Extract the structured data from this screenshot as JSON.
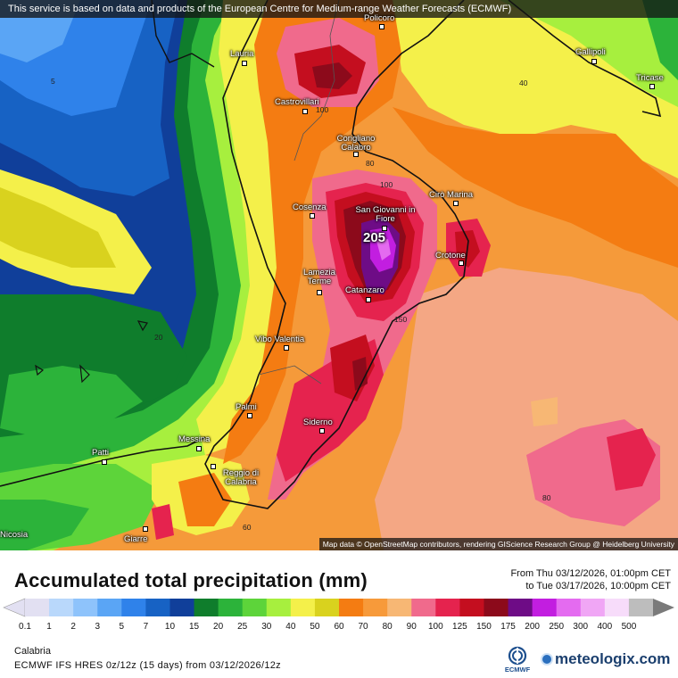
{
  "banner": "This service is based on data and products of the European Centre for Medium-range Weather Forecasts (ECMWF)",
  "attribution": "Map data © OpenStreetMap contributors, rendering GIScience Research Group @ Heidelberg University",
  "title": "Accumulated total precipitation (mm)",
  "date_from": "From Thu 03/12/2026, 01:00pm CET",
  "date_to": "to Tue 03/17/2026, 10:00pm CET",
  "region": "Calabria",
  "model_info": "ECMWF IFS HRES 0z/12z (15 days) from 03/12/2026/12z",
  "ecmwf_logo_text": "ECMWF",
  "brand": "meteologix.com",
  "max_value_label": "205",
  "cities": [
    {
      "name": "Policoro"
    },
    {
      "name": "Lauria"
    },
    {
      "name": "Gallipoli"
    },
    {
      "name": "Tricase"
    },
    {
      "name": "Castrovillari"
    },
    {
      "name": "Corigliano Calabro"
    },
    {
      "name": "Cirò Marina"
    },
    {
      "name": "Cosenza"
    },
    {
      "name": "San Giovanni in Fiore"
    },
    {
      "name": "Crotone"
    },
    {
      "name": "Lamezia Terme"
    },
    {
      "name": "Catanzaro"
    },
    {
      "name": "Vibo Valentia"
    },
    {
      "name": "Palmi"
    },
    {
      "name": "Siderno"
    },
    {
      "name": "Messina"
    },
    {
      "name": "Patti"
    },
    {
      "name": "Reggio di Calabria"
    },
    {
      "name": "Giarre"
    },
    {
      "name": "Nicosia"
    }
  ],
  "isolines": [
    "5",
    "40",
    "100",
    "80",
    "100",
    "20",
    "150",
    "60",
    "80"
  ],
  "scale": {
    "values": [
      "0.1",
      "1",
      "2",
      "3",
      "5",
      "7",
      "10",
      "15",
      "20",
      "25",
      "30",
      "40",
      "50",
      "60",
      "70",
      "80",
      "90",
      "100",
      "125",
      "150",
      "175",
      "200",
      "250",
      "300",
      "400",
      "500"
    ],
    "colors": [
      "#e2e0f2",
      "#b9d8fb",
      "#8ec3fb",
      "#5aa5f5",
      "#2f82ea",
      "#1762c4",
      "#103f9a",
      "#0f7d2c",
      "#2cb33a",
      "#5dd43a",
      "#a7ef3e",
      "#f4f04a",
      "#d9d21e",
      "#f47c12",
      "#f79a3a",
      "#f7b774",
      "#f06a8c",
      "#e5234e",
      "#c40e1f",
      "#8c0a1b",
      "#6e0c86",
      "#c21ee0",
      "#e46bf0",
      "#f0a6f5",
      "#f7dcfa",
      "#bdbdbd"
    ]
  }
}
